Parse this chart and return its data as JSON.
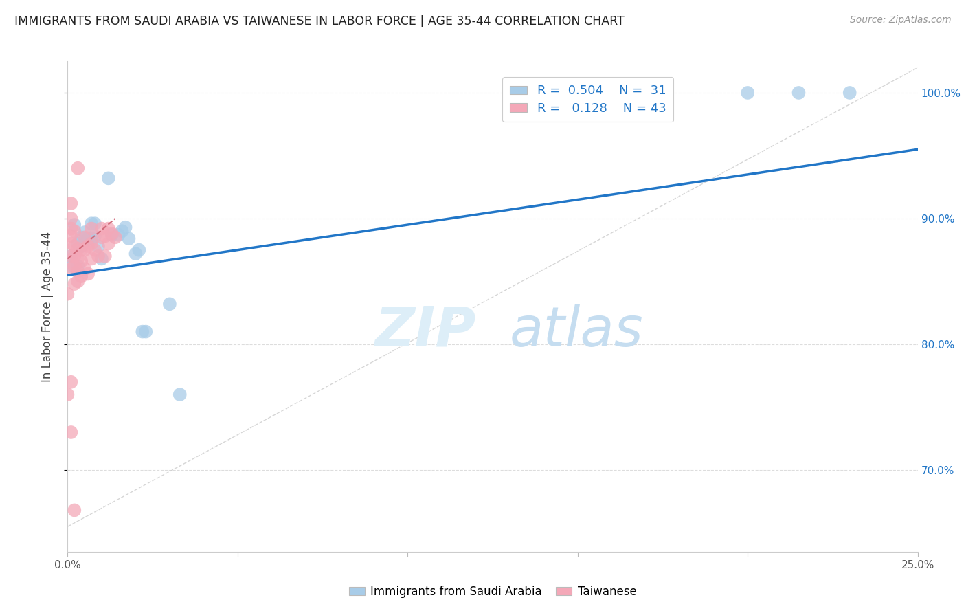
{
  "title": "IMMIGRANTS FROM SAUDI ARABIA VS TAIWANESE IN LABOR FORCE | AGE 35-44 CORRELATION CHART",
  "source": "Source: ZipAtlas.com",
  "ylabel": "In Labor Force | Age 35-44",
  "xlim": [
    0.0,
    0.25
  ],
  "ylim": [
    0.635,
    1.025
  ],
  "xticks": [
    0.0,
    0.05,
    0.1,
    0.15,
    0.2,
    0.25
  ],
  "xticklabels": [
    "0.0%",
    "",
    "",
    "",
    "",
    "25.0%"
  ],
  "yticks": [
    0.7,
    0.8,
    0.9,
    1.0
  ],
  "yticklabels": [
    "70.0%",
    "80.0%",
    "90.0%",
    "100.0%"
  ],
  "legend_labels": [
    "Immigrants from Saudi Arabia",
    "Taiwanese"
  ],
  "blue_R": 0.504,
  "blue_N": 31,
  "pink_R": 0.128,
  "pink_N": 43,
  "blue_color": "#a8cce8",
  "pink_color": "#f4a8b8",
  "blue_line_color": "#2176c7",
  "pink_line_color": "#d06878",
  "blue_scatter_x": [
    0.001,
    0.001,
    0.002,
    0.003,
    0.003,
    0.004,
    0.004,
    0.005,
    0.005,
    0.006,
    0.007,
    0.007,
    0.008,
    0.008,
    0.009,
    0.01,
    0.012,
    0.013,
    0.015,
    0.016,
    0.017,
    0.018,
    0.02,
    0.021,
    0.023,
    0.03,
    0.033,
    0.022,
    0.2,
    0.215,
    0.23
  ],
  "blue_scatter_y": [
    0.862,
    0.87,
    0.895,
    0.862,
    0.88,
    0.878,
    0.885,
    0.882,
    0.889,
    0.884,
    0.884,
    0.896,
    0.886,
    0.896,
    0.878,
    0.868,
    0.932,
    0.887,
    0.887,
    0.89,
    0.893,
    0.884,
    0.872,
    0.875,
    0.81,
    0.832,
    0.76,
    0.81,
    1.0,
    1.0,
    1.0
  ],
  "pink_scatter_x": [
    0.0,
    0.001,
    0.001,
    0.001,
    0.001,
    0.001,
    0.001,
    0.001,
    0.002,
    0.002,
    0.002,
    0.002,
    0.002,
    0.003,
    0.003,
    0.003,
    0.003,
    0.004,
    0.004,
    0.004,
    0.005,
    0.005,
    0.005,
    0.006,
    0.006,
    0.007,
    0.007,
    0.007,
    0.008,
    0.009,
    0.01,
    0.01,
    0.011,
    0.011,
    0.012,
    0.012,
    0.013,
    0.014,
    0.0,
    0.001,
    0.001,
    0.002,
    0.003
  ],
  "pink_scatter_y": [
    0.84,
    0.86,
    0.87,
    0.88,
    0.886,
    0.892,
    0.9,
    0.912,
    0.848,
    0.862,
    0.87,
    0.878,
    0.89,
    0.85,
    0.858,
    0.868,
    0.876,
    0.854,
    0.866,
    0.875,
    0.86,
    0.875,
    0.885,
    0.856,
    0.878,
    0.868,
    0.88,
    0.892,
    0.875,
    0.87,
    0.885,
    0.892,
    0.87,
    0.886,
    0.88,
    0.892,
    0.888,
    0.885,
    0.76,
    0.77,
    0.73,
    0.668,
    0.94
  ],
  "blue_line_x0": 0.0,
  "blue_line_y0": 0.855,
  "blue_line_x1": 0.25,
  "blue_line_y1": 0.955,
  "pink_line_x0": 0.0,
  "pink_line_y0": 0.868,
  "pink_line_x1": 0.014,
  "pink_line_y1": 0.9,
  "ref_line_x0": 0.0,
  "ref_line_y0": 0.655,
  "ref_line_x1": 0.25,
  "ref_line_y1": 1.02
}
